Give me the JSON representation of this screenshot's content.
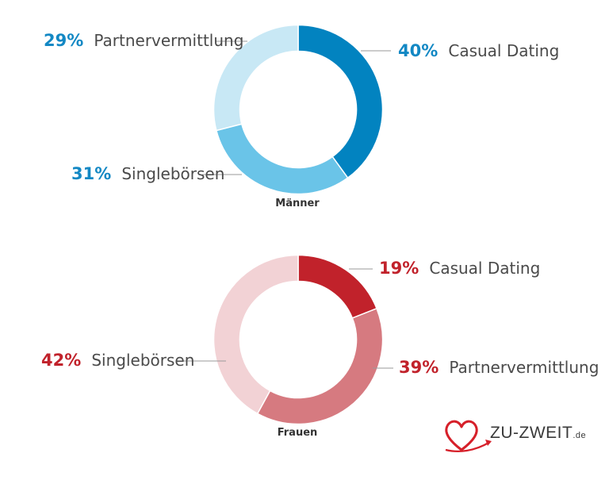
{
  "chart_data": [
    {
      "type": "pie",
      "title": "Männer",
      "categories": [
        "Casual Dating",
        "Singlebörsen",
        "Partnervermittlung"
      ],
      "values": [
        40,
        31,
        29
      ],
      "value_labels": [
        "40%",
        "31%",
        "29%"
      ],
      "colors": [
        "#0283c0",
        "#6ac4e8",
        "#c8e8f5"
      ],
      "accent": "#1388c4"
    },
    {
      "type": "pie",
      "title": "Frauen",
      "categories": [
        "Casual Dating",
        "Partnervermittlung",
        "Singlebörsen"
      ],
      "values": [
        19,
        39,
        42
      ],
      "value_labels": [
        "19%",
        "39%",
        "42%"
      ],
      "colors": [
        "#c1222b",
        "#d67a80",
        "#f2d2d5"
      ],
      "accent": "#c1222b"
    }
  ],
  "logo": {
    "name": "ZU-ZWEIT",
    "tld": ".de",
    "icon": "heart-arrow-icon"
  }
}
